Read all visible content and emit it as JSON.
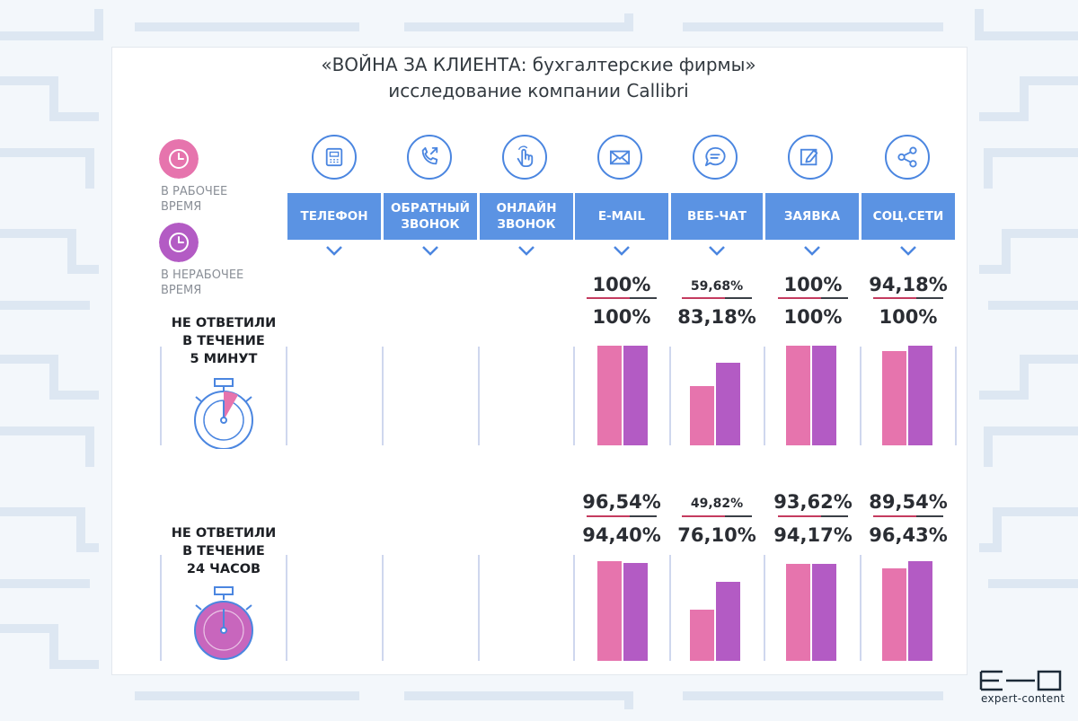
{
  "title": {
    "line1": "«ВОЙНА ЗА КЛИЕНТА: бухгалтерские фирмы»",
    "line2": "исследование компании Callibri"
  },
  "legend": {
    "work_label_1": "В РАБОЧЕЕ",
    "work_label_2": "ВРЕМЯ",
    "off_label_1": "В НЕРАБОЧЕЕ",
    "off_label_2": "ВРЕМЯ",
    "work_color": "#e674ad",
    "off_color": "#b35bc4"
  },
  "channels": [
    {
      "name_1": "ТЕЛЕФОН",
      "name_2": "",
      "icon": "phone-icon"
    },
    {
      "name_1": "ОБРАТНЫЙ",
      "name_2": "ЗВОНОК",
      "icon": "callback-icon"
    },
    {
      "name_1": "ОНЛАЙН",
      "name_2": "ЗВОНОК",
      "icon": "online-call-icon"
    },
    {
      "name_1": "E-MAIL",
      "name_2": "",
      "icon": "email-icon"
    },
    {
      "name_1": "ВЕБ-ЧАТ",
      "name_2": "",
      "icon": "chat-icon"
    },
    {
      "name_1": "ЗАЯВКА",
      "name_2": "",
      "icon": "request-icon"
    },
    {
      "name_1": "СОЦ.СЕТИ",
      "name_2": "",
      "icon": "share-icon"
    }
  ],
  "sections": [
    {
      "label_1": "НЕ ОТВЕТИЛИ",
      "label_2": "В ТЕЧЕНИЕ",
      "label_3": "5 МИНУТ"
    },
    {
      "label_1": "НЕ ОТВЕТИЛИ",
      "label_2": "В ТЕЧЕНИЕ",
      "label_3": "24 ЧАСОВ"
    }
  ],
  "chart_data": [
    {
      "type": "bar",
      "title": "НЕ ОТВЕТИЛИ В ТЕЧЕНИЕ 5 МИНУТ",
      "categories": [
        "E-MAIL",
        "ВЕБ-ЧАТ",
        "ЗАЯВКА",
        "СОЦ.СЕТИ"
      ],
      "series": [
        {
          "name": "В РАБОЧЕЕ ВРЕМЯ",
          "values": [
            100,
            59.68,
            100,
            94.18
          ]
        },
        {
          "name": "В НЕРАБОЧЕЕ ВРЕМЯ",
          "values": [
            100,
            83.18,
            100,
            100
          ]
        }
      ],
      "labels_work": [
        "100%",
        "59,68%",
        "100%",
        "94,18%"
      ],
      "labels_off": [
        "100%",
        "83,18%",
        "100%",
        "100%"
      ],
      "ylim": [
        0,
        100
      ]
    },
    {
      "type": "bar",
      "title": "НЕ ОТВЕТИЛИ В ТЕЧЕНИЕ 24 ЧАСОВ",
      "categories": [
        "E-MAIL",
        "ВЕБ-ЧАТ",
        "ЗАЯВКА",
        "СОЦ.СЕТИ"
      ],
      "series": [
        {
          "name": "В РАБОЧЕЕ ВРЕМЯ",
          "values": [
            96.54,
            49.82,
            93.62,
            89.54
          ]
        },
        {
          "name": "В НЕРАБОЧЕЕ ВРЕМЯ",
          "values": [
            94.4,
            76.1,
            94.17,
            96.43
          ]
        }
      ],
      "labels_work": [
        "96,54%",
        "49,82%",
        "93,62%",
        "89,54%"
      ],
      "labels_off": [
        "94,40%",
        "76,10%",
        "94,17%",
        "96,43%"
      ],
      "ylim": [
        0,
        100
      ]
    }
  ],
  "brand": {
    "text": "expert-content"
  }
}
